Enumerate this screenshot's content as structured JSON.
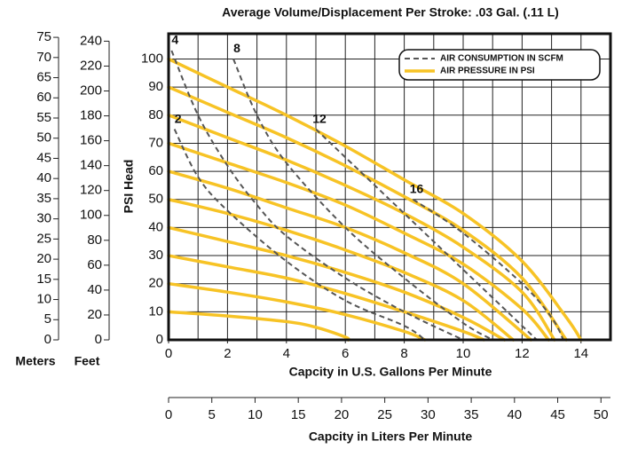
{
  "chart_data": {
    "type": "line",
    "title": "Average Volume/Displacement Per Stroke: .03 Gal. (.11 L)",
    "ylabel": "PSI Head",
    "xlabel": "Capcity in U.S. Gallons Per Minute",
    "xlim": [
      0,
      15
    ],
    "xticks": [
      0,
      2,
      4,
      6,
      8,
      10,
      12,
      14
    ],
    "ylim": [
      0,
      109
    ],
    "yticks": [
      0,
      10,
      20,
      30,
      40,
      50,
      60,
      70,
      80,
      90,
      100
    ],
    "grid": true,
    "grid_step": 1,
    "feet_axis": {
      "label": "Feet",
      "lim": [
        0,
        246
      ],
      "ticks": [
        0,
        20,
        40,
        60,
        80,
        100,
        120,
        140,
        160,
        180,
        200,
        220,
        240
      ]
    },
    "meters_axis": {
      "label": "Meters",
      "lim": [
        0,
        75.9
      ],
      "ticks": [
        0,
        5,
        10,
        15,
        20,
        25,
        30,
        35,
        40,
        45,
        50,
        55,
        60,
        65,
        70,
        75
      ]
    },
    "liters_axis": {
      "label": "Capcity in Liters Per Minute",
      "lim": [
        0,
        51.1
      ],
      "ticks": [
        0,
        5,
        10,
        15,
        20,
        25,
        30,
        35,
        40,
        45,
        50
      ]
    },
    "legend": [
      {
        "label": "AIR CONSUMPTION IN SCFM",
        "color": "#555555",
        "dashed": true
      },
      {
        "label": "AIR PRESSURE IN PSI",
        "color": "#f7c325",
        "dashed": false
      }
    ],
    "pressure_curves": [
      {
        "x": [
          0,
          2,
          4,
          5,
          6,
          6.1
        ],
        "y": [
          10,
          8.5,
          6.5,
          4.5,
          1,
          0
        ]
      },
      {
        "x": [
          0,
          2,
          4,
          6,
          8,
          8.7
        ],
        "y": [
          20,
          17,
          13.5,
          9,
          3,
          0
        ]
      },
      {
        "x": [
          0,
          2,
          4,
          6,
          8,
          10,
          10.7
        ],
        "y": [
          30,
          26,
          22,
          16.5,
          10,
          3,
          0
        ]
      },
      {
        "x": [
          0,
          2,
          4,
          6,
          8,
          10,
          11.4
        ],
        "y": [
          40,
          35,
          30,
          24,
          17,
          8,
          0
        ]
      },
      {
        "x": [
          0,
          2,
          4,
          6,
          8,
          10,
          11.7
        ],
        "y": [
          50,
          45,
          39,
          32,
          24,
          14,
          0
        ]
      },
      {
        "x": [
          0,
          2,
          4,
          6,
          8,
          10,
          12.3
        ],
        "y": [
          60,
          54,
          47,
          40,
          31,
          20,
          0
        ]
      },
      {
        "x": [
          0,
          2,
          4,
          6,
          8,
          10,
          12,
          12.9
        ],
        "y": [
          70,
          63,
          56,
          48,
          38,
          27,
          11,
          0
        ]
      },
      {
        "x": [
          0,
          2,
          4,
          6,
          8,
          10,
          12,
          13.1
        ],
        "y": [
          80,
          72,
          64,
          55,
          45,
          33,
          17,
          0
        ]
      },
      {
        "x": [
          0,
          2,
          4,
          6,
          8,
          10,
          12,
          13.5
        ],
        "y": [
          90,
          81,
          72,
          62,
          51,
          39,
          22,
          0
        ]
      },
      {
        "x": [
          0,
          2,
          4,
          6,
          8,
          10,
          12,
          13.5,
          14
        ],
        "y": [
          100,
          90,
          80,
          69,
          57,
          45,
          28,
          8,
          0
        ]
      }
    ],
    "air_curves": [
      {
        "label": "2",
        "x": [
          0.2,
          1,
          2,
          4,
          6,
          8,
          8.7
        ],
        "y": [
          75,
          58,
          46,
          28,
          14,
          5,
          0
        ]
      },
      {
        "label": "4",
        "x": [
          0.1,
          1,
          2,
          3,
          4,
          6,
          8,
          10
        ],
        "y": [
          103,
          80,
          62,
          48,
          37,
          22,
          10,
          0
        ]
      },
      {
        "label": "8",
        "x": [
          2.2,
          3,
          4,
          6,
          8,
          10,
          11
        ],
        "y": [
          100,
          80,
          63,
          40,
          22,
          6,
          0
        ]
      },
      {
        "label": "12",
        "x": [
          5,
          6,
          8,
          10,
          12,
          12.5
        ],
        "y": [
          75,
          65,
          45,
          25,
          5,
          0
        ]
      },
      {
        "label": "16",
        "x": [
          8.3,
          10,
          12,
          13,
          13.4
        ],
        "y": [
          50,
          38,
          20,
          8,
          0
        ]
      }
    ]
  }
}
